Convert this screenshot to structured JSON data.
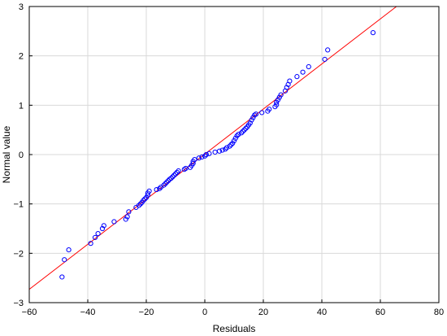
{
  "chart_data": {
    "type": "scatter",
    "title": "",
    "xlabel": "Residuals",
    "ylabel": "Normal value",
    "xlim": [
      -60,
      80
    ],
    "ylim": [
      -3,
      3
    ],
    "xticks": [
      -60,
      -40,
      -20,
      0,
      20,
      40,
      60,
      80
    ],
    "yticks": [
      -3,
      -2,
      -1,
      0,
      1,
      2,
      3
    ],
    "xtick_labels": [
      "−60",
      "−40",
      "−20",
      "0",
      "20",
      "40",
      "60",
      "80"
    ],
    "ytick_labels": [
      "−3",
      "−2",
      "−1",
      "0",
      "1",
      "2",
      "3"
    ],
    "grid": true,
    "marker_color": "#0000ff",
    "line_color": "#ff0000",
    "fit_line": {
      "x": [
        -60,
        65.5
      ],
      "y": [
        -2.73,
        3.0
      ]
    },
    "points": [
      [
        -48.8,
        -2.48
      ],
      [
        -48.0,
        -2.13
      ],
      [
        -46.5,
        -1.93
      ],
      [
        -39.0,
        -1.8
      ],
      [
        -37.5,
        -1.68
      ],
      [
        -36.5,
        -1.6
      ],
      [
        -35.0,
        -1.5
      ],
      [
        -34.5,
        -1.44
      ],
      [
        -31.0,
        -1.36
      ],
      [
        -27.0,
        -1.31
      ],
      [
        -26.5,
        -1.26
      ],
      [
        -26.0,
        -1.16
      ],
      [
        -23.5,
        -1.07
      ],
      [
        -22.5,
        -1.03
      ],
      [
        -22.0,
        -1.0
      ],
      [
        -21.5,
        -0.97
      ],
      [
        -21.0,
        -0.93
      ],
      [
        -20.5,
        -0.9
      ],
      [
        -20.0,
        -0.87
      ],
      [
        -19.5,
        -0.82
      ],
      [
        -19.5,
        -0.78
      ],
      [
        -19.0,
        -0.74
      ],
      [
        -16.5,
        -0.71
      ],
      [
        -15.5,
        -0.69
      ],
      [
        -15.0,
        -0.66
      ],
      [
        -14.0,
        -0.62
      ],
      [
        -13.5,
        -0.59
      ],
      [
        -13.0,
        -0.56
      ],
      [
        -12.5,
        -0.53
      ],
      [
        -12.0,
        -0.5
      ],
      [
        -11.5,
        -0.48
      ],
      [
        -11.0,
        -0.45
      ],
      [
        -10.5,
        -0.42
      ],
      [
        -10.0,
        -0.39
      ],
      [
        -9.5,
        -0.36
      ],
      [
        -9.0,
        -0.33
      ],
      [
        -7.0,
        -0.3
      ],
      [
        -6.5,
        -0.28
      ],
      [
        -5.0,
        -0.26
      ],
      [
        -4.5,
        -0.22
      ],
      [
        -4.0,
        -0.18
      ],
      [
        -4.0,
        -0.14
      ],
      [
        -3.5,
        -0.1
      ],
      [
        -2.0,
        -0.07
      ],
      [
        -1.0,
        -0.05
      ],
      [
        0.0,
        -0.03
      ],
      [
        0.5,
        0.0
      ],
      [
        1.5,
        0.02
      ],
      [
        3.5,
        0.05
      ],
      [
        5.0,
        0.07
      ],
      [
        6.0,
        0.09
      ],
      [
        7.0,
        0.11
      ],
      [
        7.5,
        0.14
      ],
      [
        8.5,
        0.17
      ],
      [
        9.0,
        0.2
      ],
      [
        9.5,
        0.23
      ],
      [
        10.0,
        0.28
      ],
      [
        10.5,
        0.33
      ],
      [
        11.0,
        0.38
      ],
      [
        11.5,
        0.41
      ],
      [
        12.5,
        0.44
      ],
      [
        13.0,
        0.47
      ],
      [
        13.5,
        0.5
      ],
      [
        14.0,
        0.53
      ],
      [
        14.5,
        0.56
      ],
      [
        15.0,
        0.6
      ],
      [
        15.5,
        0.64
      ],
      [
        16.0,
        0.7
      ],
      [
        16.5,
        0.75
      ],
      [
        17.0,
        0.8
      ],
      [
        17.5,
        0.82
      ],
      [
        19.5,
        0.85
      ],
      [
        21.5,
        0.88
      ],
      [
        22.0,
        0.92
      ],
      [
        24.0,
        0.97
      ],
      [
        24.5,
        1.01
      ],
      [
        24.5,
        1.06
      ],
      [
        25.0,
        1.11
      ],
      [
        25.5,
        1.16
      ],
      [
        26.0,
        1.21
      ],
      [
        27.5,
        1.29
      ],
      [
        28.0,
        1.36
      ],
      [
        28.5,
        1.42
      ],
      [
        29.0,
        1.49
      ],
      [
        31.5,
        1.58
      ],
      [
        33.5,
        1.67
      ],
      [
        35.5,
        1.78
      ],
      [
        41.0,
        1.93
      ],
      [
        42.0,
        2.12
      ],
      [
        57.5,
        2.47
      ]
    ]
  }
}
